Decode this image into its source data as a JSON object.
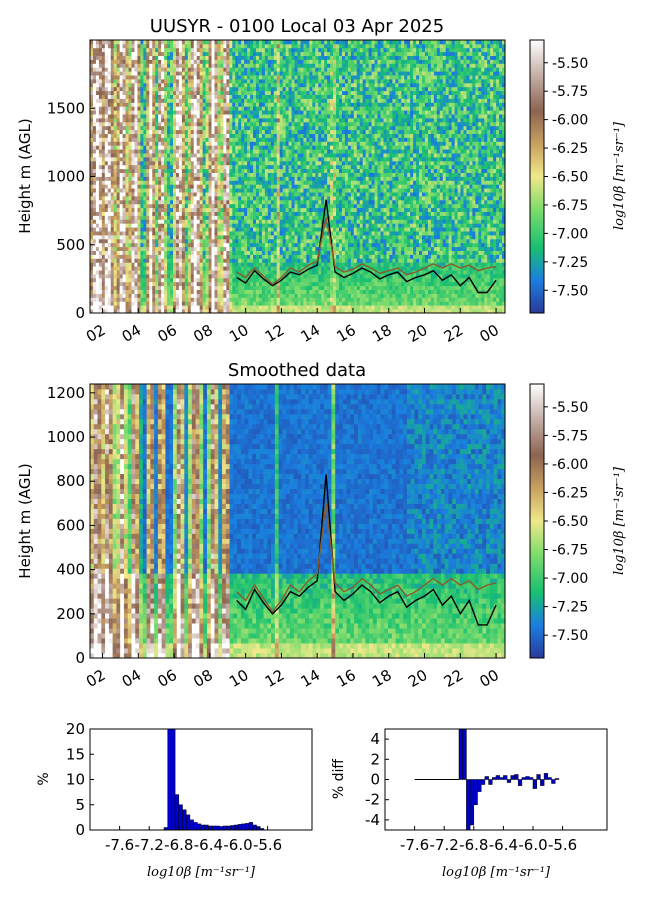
{
  "chart_data": [
    {
      "type": "heatmap",
      "title": "UUSYR - 0100 Local 03 Apr 2025",
      "ylabel": "Height m (AGL)",
      "ylim": [
        0,
        2000
      ],
      "yticks": [
        0,
        500,
        1000,
        1500
      ],
      "xticks": [
        "02",
        "04",
        "06",
        "08",
        "10",
        "12",
        "14",
        "16",
        "18",
        "20",
        "22",
        "00"
      ],
      "xrange_hours": [
        1.3,
        24.5
      ],
      "colorbar": {
        "label": "log10β [m⁻¹sr⁻¹]",
        "range": [
          -7.7,
          -5.3
        ],
        "ticks": [
          "-5.50",
          "-5.75",
          "-6.00",
          "-6.25",
          "-6.50",
          "-6.75",
          "-7.00",
          "-7.25",
          "-7.50"
        ]
      },
      "series": [
        {
          "color": "#000000",
          "x": [
            9.5,
            10.0,
            10.5,
            11.0,
            11.5,
            12.0,
            12.5,
            13.0,
            13.5,
            14.0,
            14.5,
            15.0,
            15.5,
            16.0,
            16.5,
            17.0,
            17.5,
            18.0,
            18.5,
            19.0,
            19.5,
            20.0,
            20.5,
            21.0,
            21.5,
            22.0,
            22.5,
            23.0,
            23.5,
            24.0
          ],
          "y": [
            260,
            220,
            310,
            250,
            200,
            240,
            300,
            280,
            320,
            350,
            830,
            300,
            260,
            290,
            330,
            300,
            250,
            280,
            300,
            230,
            260,
            280,
            310,
            240,
            280,
            200,
            260,
            150,
            150,
            240
          ]
        },
        {
          "color": "#8b5a2b",
          "x": [
            9.5,
            10.0,
            10.5,
            11.0,
            11.5,
            12.0,
            12.5,
            13.0,
            13.5,
            14.0,
            14.5,
            15.0,
            15.5,
            16.0,
            16.5,
            17.0,
            17.5,
            18.0,
            18.5,
            19.0,
            19.5,
            20.0,
            20.5,
            21.0,
            21.5,
            22.0,
            22.5,
            23.0,
            23.5,
            24.0
          ],
          "y": [
            300,
            260,
            330,
            270,
            210,
            260,
            330,
            300,
            350,
            380,
            700,
            340,
            300,
            320,
            360,
            330,
            290,
            310,
            330,
            280,
            300,
            330,
            360,
            330,
            360,
            330,
            350,
            310,
            330,
            340
          ]
        }
      ]
    },
    {
      "type": "heatmap",
      "title": "Smoothed data",
      "ylabel": "Height m (AGL)",
      "ylim": [
        0,
        1240
      ],
      "yticks": [
        0,
        200,
        400,
        600,
        800,
        1000,
        1200
      ],
      "xticks": [
        "02",
        "04",
        "06",
        "08",
        "10",
        "12",
        "14",
        "16",
        "18",
        "20",
        "22",
        "00"
      ],
      "xrange_hours": [
        1.3,
        24.5
      ],
      "colorbar": {
        "label": "log10β [m⁻¹sr⁻¹]",
        "range": [
          -7.7,
          -5.3
        ],
        "ticks": [
          "-5.50",
          "-5.75",
          "-6.00",
          "-6.25",
          "-6.50",
          "-6.75",
          "-7.00",
          "-7.25",
          "-7.50"
        ]
      },
      "series": [
        {
          "color": "#000000",
          "x": [
            9.5,
            10.0,
            10.5,
            11.0,
            11.5,
            12.0,
            12.5,
            13.0,
            13.5,
            14.0,
            14.5,
            15.0,
            15.5,
            16.0,
            16.5,
            17.0,
            17.5,
            18.0,
            18.5,
            19.0,
            19.5,
            20.0,
            20.5,
            21.0,
            21.5,
            22.0,
            22.5,
            23.0,
            23.5,
            24.0
          ],
          "y": [
            260,
            220,
            310,
            250,
            200,
            240,
            300,
            280,
            320,
            350,
            830,
            300,
            260,
            290,
            330,
            300,
            250,
            280,
            300,
            230,
            260,
            280,
            310,
            240,
            280,
            200,
            260,
            150,
            150,
            240
          ]
        },
        {
          "color": "#8b5a2b",
          "x": [
            9.5,
            10.0,
            10.5,
            11.0,
            11.5,
            12.0,
            12.5,
            13.0,
            13.5,
            14.0,
            14.5,
            15.0,
            15.5,
            16.0,
            16.5,
            17.0,
            17.5,
            18.0,
            18.5,
            19.0,
            19.5,
            20.0,
            20.5,
            21.0,
            21.5,
            22.0,
            22.5,
            23.0,
            23.5,
            24.0
          ],
          "y": [
            300,
            260,
            330,
            270,
            210,
            260,
            330,
            300,
            350,
            380,
            700,
            340,
            300,
            320,
            360,
            330,
            290,
            310,
            330,
            280,
            300,
            330,
            360,
            330,
            360,
            330,
            350,
            310,
            330,
            340
          ]
        }
      ]
    },
    {
      "type": "bar",
      "xlabel": "log10β [m⁻¹sr⁻¹]",
      "ylabel": "%",
      "ylim": [
        0,
        20
      ],
      "yticks": [
        "0",
        "5",
        "10",
        "15",
        "20"
      ],
      "xlim": [
        -8.0,
        -5.0
      ],
      "xtick_values": [
        -7.6,
        -7.2,
        -6.8,
        -6.4,
        -6.0,
        -5.6
      ],
      "xtick_labels": [
        "-7.6",
        "-7.2",
        "-6.8",
        "-6.4",
        "-6.0",
        "-5.6"
      ],
      "bin_width": 0.05,
      "bin_starts": [
        -7.0,
        -6.95,
        -6.9,
        -6.85,
        -6.8,
        -6.75,
        -6.7,
        -6.65,
        -6.6,
        -6.55,
        -6.5,
        -6.45,
        -6.4,
        -6.35,
        -6.3,
        -6.25,
        -6.2,
        -6.15,
        -6.1,
        -6.05,
        -6.0,
        -5.95,
        -5.9,
        -5.85,
        -5.8,
        -5.75,
        -5.7
      ],
      "values": [
        0.5,
        20,
        20,
        7,
        5,
        4,
        3,
        2,
        1.5,
        1.2,
        1,
        1,
        0.8,
        0.8,
        0.8,
        0.7,
        0.8,
        0.8,
        0.9,
        1,
        1.1,
        1.2,
        1.3,
        1.5,
        1,
        0.7,
        0.3
      ],
      "bar_color": "#0000cc"
    },
    {
      "type": "bar",
      "xlabel": "log10β [m⁻¹sr⁻¹]",
      "ylabel": "% diff",
      "ylim": [
        -5,
        5
      ],
      "yticks": [
        "-4",
        "-2",
        "0",
        "2",
        "4"
      ],
      "xlim": [
        -8.0,
        -5.0
      ],
      "xtick_values": [
        -7.6,
        -7.2,
        -6.8,
        -6.4,
        -6.0,
        -5.6
      ],
      "xtick_labels": [
        "-7.6",
        "-7.2",
        "-6.8",
        "-6.4",
        "-6.0",
        "-5.6"
      ],
      "bin_width": 0.05,
      "bin_starts": [
        -7.0,
        -6.95,
        -6.9,
        -6.85,
        -6.8,
        -6.75,
        -6.7,
        -6.65,
        -6.6,
        -6.55,
        -6.5,
        -6.45,
        -6.4,
        -6.35,
        -6.3,
        -6.25,
        -6.2,
        -6.15,
        -6.1,
        -6.05,
        -6.0,
        -5.95,
        -5.9,
        -5.85,
        -5.8,
        -5.75,
        -5.7
      ],
      "values": [
        5,
        5,
        -5,
        -4.5,
        -2.5,
        -1.2,
        -0.5,
        0.3,
        -0.5,
        0.2,
        0.4,
        0.2,
        0.4,
        -0.3,
        0.4,
        0.5,
        -0.6,
        0.2,
        0.3,
        0.2,
        -0.9,
        0.5,
        -0.6,
        0.6,
        0.2,
        -0.4,
        0.1
      ],
      "flat_line_from": -7.6,
      "flat_line_to": -7.0,
      "bar_color": "#0000cc"
    }
  ]
}
